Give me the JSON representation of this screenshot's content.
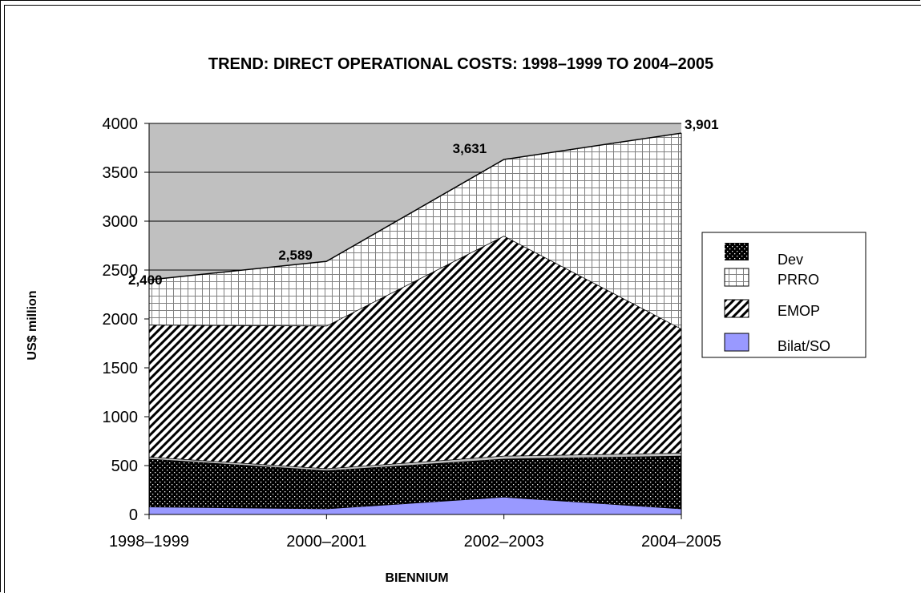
{
  "chart_data": {
    "type": "area",
    "title": "TREND: DIRECT OPERATIONAL COSTS: 1998–1999 TO 2004–2005",
    "xlabel": "BIENNIUM",
    "ylabel": "US$ million",
    "categories": [
      "1998–1999",
      "2000–2001",
      "2002–2003",
      "2004–2005"
    ],
    "ylim": [
      0,
      4000
    ],
    "yticks": [
      0,
      500,
      1000,
      1500,
      2000,
      2500,
      3000,
      3500,
      4000
    ],
    "stacked": true,
    "series": [
      {
        "name": "Bilat/SO",
        "values": [
          80,
          60,
          180,
          60
        ],
        "color": "#9999ff"
      },
      {
        "name": "Dev",
        "values": [
          490,
          390,
          390,
          540
        ],
        "color": "#000000"
      },
      {
        "name": "",
        "values": [
          20,
          20,
          30,
          30
        ],
        "color": "#c0c0c0"
      },
      {
        "name": "EMOP",
        "values": [
          1350,
          1460,
          2250,
          1270
        ],
        "color": "#ffffff"
      },
      {
        "name": "PRRO",
        "values": [
          460,
          659,
          781,
          2001
        ],
        "color": "#ffffff"
      }
    ],
    "totals": [
      2400,
      2589,
      3631,
      3901
    ],
    "total_labels": [
      "2,400",
      "2,589",
      "3,631",
      "3,901"
    ],
    "plot_background": "#c0c0c0",
    "grid": true,
    "legend": {
      "position": "right",
      "entries": [
        "Dev",
        "PRRO",
        "EMOP",
        "Bilat/SO"
      ]
    }
  }
}
